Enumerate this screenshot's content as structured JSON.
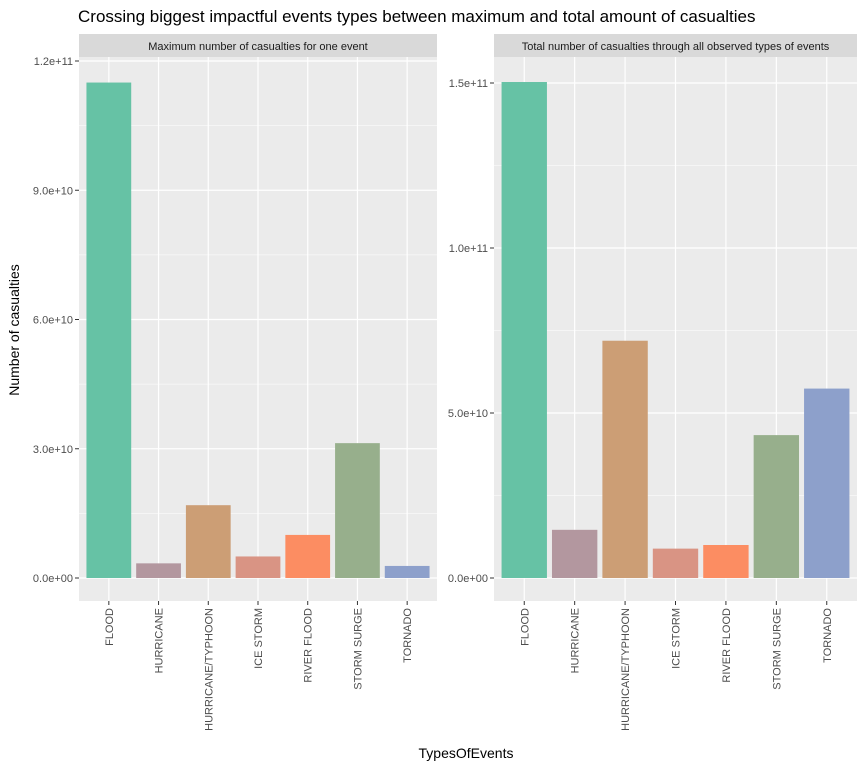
{
  "title": "Crossing biggest impactful events types between maximum and total amount of casualties",
  "ylabel": "Number of casualties",
  "xlabel": "TypesOfEvents",
  "colors": {
    "panel_bg": "#EBEBEB",
    "strip_bg": "#D9D9D9",
    "grid": "#FFFFFF",
    "bars": [
      "#66C2A5",
      "#B3979F",
      "#CC9E75",
      "#D99484",
      "#FC8D62",
      "#97AF8C",
      "#8DA0CB"
    ]
  },
  "chart_data": [
    {
      "type": "bar",
      "panel_title": "Maximum number of casualties for one event",
      "categories": [
        "FLOOD",
        "HURRICANE",
        "HURRICANE/TYPHOON",
        "ICE STORM",
        "RIVER FLOOD",
        "STORM SURGE",
        "TORNADO"
      ],
      "values": [
        115000000000,
        3400000000,
        16900000000,
        5000000000,
        10000000000,
        31300000000,
        2800000000
      ],
      "ylim": [
        0,
        120000000000
      ],
      "yticks": [
        0,
        30000000000,
        60000000000,
        90000000000,
        120000000000
      ],
      "ytick_labels": [
        "0.0e+00",
        "3.0e+10",
        "6.0e+10",
        "9.0e+10",
        "1.2e+11"
      ],
      "grid": true
    },
    {
      "type": "bar",
      "panel_title": "Total number of casualties through all observed types of events",
      "categories": [
        "FLOOD",
        "HURRICANE",
        "HURRICANE/TYPHOON",
        "ICE STORM",
        "RIVER FLOOD",
        "STORM SURGE",
        "TORNADO"
      ],
      "values": [
        150300000000,
        14600000000,
        71900000000,
        8900000000,
        10000000000,
        43300000000,
        57400000000
      ],
      "ylim": [
        0,
        150000000000
      ],
      "yticks": [
        0,
        50000000000,
        100000000000,
        150000000000
      ],
      "ytick_labels": [
        "0.0e+00",
        "5.0e+10",
        "1.0e+11",
        "1.5e+11"
      ],
      "grid": true
    }
  ]
}
